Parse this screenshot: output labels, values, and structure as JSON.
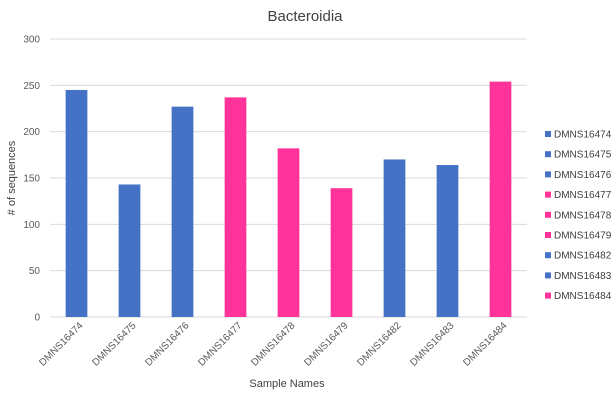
{
  "chart_data": {
    "type": "bar",
    "title": "Bacteroidia",
    "xlabel": "Sample Names",
    "ylabel": "# of sequences",
    "ylim": [
      0,
      300
    ],
    "yticks": [
      0,
      50,
      100,
      150,
      200,
      250,
      300
    ],
    "grid": true,
    "legend_position": "right",
    "categories": [
      "DMNS16474",
      "DMNS16475",
      "DMNS16476",
      "DMNS16477",
      "DMNS16478",
      "DMNS16479",
      "DMNS16482",
      "DMNS16483",
      "DMNS16484"
    ],
    "values": [
      245,
      143,
      227,
      237,
      182,
      139,
      170,
      164,
      254
    ],
    "bar_colors": [
      "#4472c4",
      "#4472c4",
      "#4472c4",
      "#ff3399",
      "#ff3399",
      "#ff3399",
      "#4472c4",
      "#4472c4",
      "#ff3399"
    ],
    "legend": [
      {
        "name": "DMNS16474",
        "color": "#4472c4"
      },
      {
        "name": "DMNS16475",
        "color": "#4472c4"
      },
      {
        "name": "DMNS16476",
        "color": "#4472c4"
      },
      {
        "name": "DMNS16477",
        "color": "#ff3399"
      },
      {
        "name": "DMNS16478",
        "color": "#ff3399"
      },
      {
        "name": "DMNS16479",
        "color": "#ff3399"
      },
      {
        "name": "DMNS16482",
        "color": "#4472c4"
      },
      {
        "name": "DMNS16483",
        "color": "#4472c4"
      },
      {
        "name": "DMNS16484",
        "color": "#ff3399"
      }
    ]
  }
}
